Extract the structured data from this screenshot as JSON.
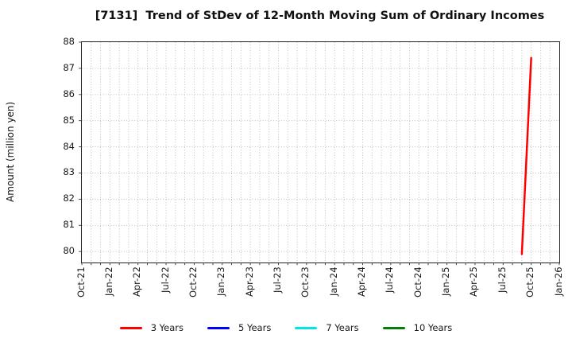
{
  "chart_data": {
    "type": "line",
    "title": "[7131]  Trend of StDev of 12-Month Moving Sum of Ordinary Incomes",
    "ylabel": "Amount (million yen)",
    "xlabel": "",
    "ylim": [
      79.58,
      88
    ],
    "yticks": [
      80,
      81,
      82,
      83,
      84,
      85,
      86,
      87,
      88
    ],
    "x_total_months": 51,
    "x_tick_interval_months": 3,
    "x_tick_labels": [
      "Oct-21",
      "Jan-22",
      "Apr-22",
      "Jul-22",
      "Oct-22",
      "Jan-23",
      "Apr-23",
      "Jul-23",
      "Oct-23",
      "Jan-24",
      "Apr-24",
      "Jul-24",
      "Oct-24",
      "Jan-25",
      "Apr-25",
      "Jul-25",
      "Oct-25",
      "Jan-26"
    ],
    "grid": {
      "show": true,
      "style": "dotted",
      "color": "#b8b8b8",
      "vertical_every_months": 1,
      "horizontal_every_units": 1
    },
    "legend": {
      "position": "bottom-center",
      "entries": [
        {
          "label": "3 Years",
          "color": "#ff0000"
        },
        {
          "label": "5 Years",
          "color": "#0000ff"
        },
        {
          "label": "7 Years",
          "color": "#00e5e5"
        },
        {
          "label": "10 Years",
          "color": "#008000"
        }
      ]
    },
    "series": [
      {
        "name": "3 Years",
        "color": "#ff0000",
        "points": [
          {
            "month": "Sep-25",
            "month_index": 47,
            "value": 79.9
          },
          {
            "month": "Oct-25",
            "month_index": 48,
            "value": 87.4
          }
        ]
      },
      {
        "name": "5 Years",
        "color": "#0000ff",
        "points": []
      },
      {
        "name": "7 Years",
        "color": "#00e5e5",
        "points": []
      },
      {
        "name": "10 Years",
        "color": "#008000",
        "points": []
      }
    ]
  }
}
